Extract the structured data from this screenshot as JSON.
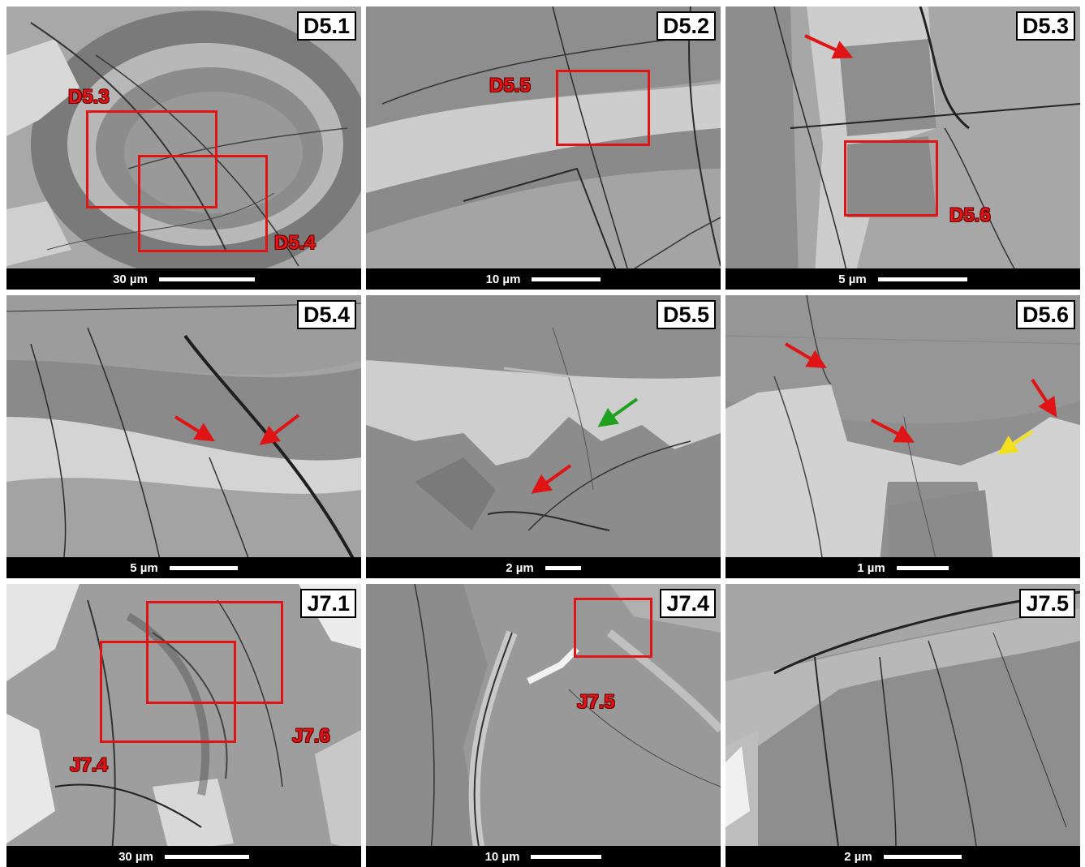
{
  "panels": [
    {
      "id": "D5.1",
      "scale": "30 µm",
      "boxes": [
        "D5.3",
        "D5.4"
      ]
    },
    {
      "id": "D5.2",
      "scale": "10 µm",
      "boxes": [
        "D5.5"
      ]
    },
    {
      "id": "D5.3",
      "scale": "5 µm",
      "boxes": [
        "D5.6"
      ]
    },
    {
      "id": "D5.4",
      "scale": "5 µm",
      "boxes": []
    },
    {
      "id": "D5.5",
      "scale": "2 µm",
      "boxes": []
    },
    {
      "id": "D5.6",
      "scale": "1 µm",
      "boxes": []
    },
    {
      "id": "J7.1",
      "scale": "30 µm",
      "boxes": [
        "J7.4",
        "J7.6"
      ]
    },
    {
      "id": "J7.4",
      "scale": "10 µm",
      "boxes": [
        "J7.5"
      ]
    },
    {
      "id": "J7.5",
      "scale": "2 µm",
      "boxes": []
    }
  ],
  "colors": {
    "box": "#e01414",
    "arrow_red": "#e01414",
    "arrow_green": "#1fa01f",
    "arrow_yellow": "#f0e020",
    "label_bg": "#ffffff"
  },
  "scale_bar_fraction": [
    0.27,
    0.2,
    0.25,
    0.19,
    0.1,
    0.15,
    0.24,
    0.2,
    0.22
  ]
}
